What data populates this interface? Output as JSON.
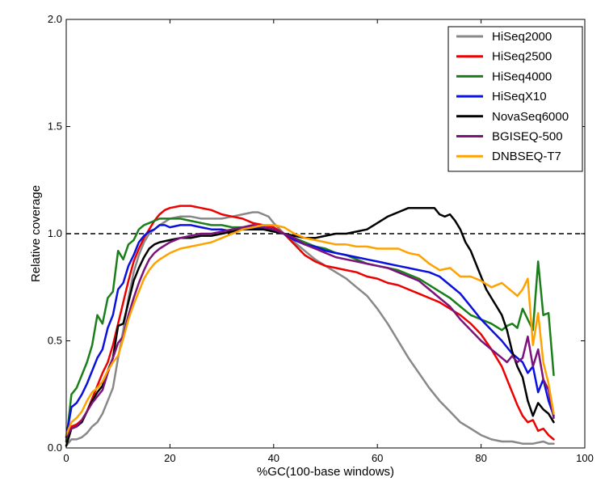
{
  "chart_data": {
    "type": "line",
    "title": "",
    "xlabel": "%GC(100-base windows)",
    "ylabel": "Relative coverage",
    "xlim": [
      0,
      100
    ],
    "ylim": [
      0,
      2.0
    ],
    "xticks": [
      "0",
      "20",
      "40",
      "60",
      "80",
      "100"
    ],
    "yticks": [
      "0.0",
      "0.5",
      "1.0",
      "1.5",
      "2.0"
    ],
    "reference_line": {
      "y": 1.0,
      "style": "dashed",
      "color": "#000000"
    },
    "legend_position": "top-right",
    "series": [
      {
        "name": "HiSeq2000",
        "color": "#888888",
        "x": [
          0,
          1,
          2,
          3,
          4,
          5,
          6,
          7,
          8,
          9,
          10,
          11,
          12,
          13,
          14,
          15,
          16,
          18,
          20,
          22,
          24,
          26,
          28,
          30,
          32,
          34,
          36,
          37,
          38,
          39,
          40,
          42,
          44,
          46,
          48,
          50,
          52,
          54,
          56,
          58,
          60,
          62,
          64,
          66,
          68,
          70,
          72,
          74,
          76,
          78,
          80,
          82,
          84,
          86,
          88,
          90,
          92,
          93,
          94
        ],
        "y": [
          0.01,
          0.04,
          0.04,
          0.05,
          0.07,
          0.1,
          0.12,
          0.16,
          0.22,
          0.28,
          0.42,
          0.55,
          0.7,
          0.82,
          0.9,
          0.96,
          1.0,
          1.04,
          1.07,
          1.08,
          1.08,
          1.07,
          1.07,
          1.07,
          1.08,
          1.09,
          1.1,
          1.1,
          1.09,
          1.08,
          1.05,
          1.0,
          0.96,
          0.92,
          0.88,
          0.85,
          0.82,
          0.79,
          0.75,
          0.71,
          0.65,
          0.58,
          0.5,
          0.42,
          0.35,
          0.28,
          0.22,
          0.17,
          0.12,
          0.09,
          0.06,
          0.04,
          0.03,
          0.03,
          0.02,
          0.02,
          0.03,
          0.02,
          0.02
        ]
      },
      {
        "name": "HiSeq2500",
        "color": "#ee0000",
        "x": [
          0,
          1,
          2,
          3,
          4,
          5,
          6,
          7,
          8,
          9,
          10,
          11,
          12,
          13,
          14,
          15,
          16,
          17,
          18,
          19,
          20,
          22,
          24,
          26,
          28,
          30,
          32,
          34,
          36,
          38,
          40,
          42,
          44,
          46,
          48,
          50,
          52,
          54,
          56,
          58,
          60,
          62,
          64,
          66,
          68,
          70,
          72,
          74,
          76,
          78,
          80,
          82,
          84,
          86,
          87,
          88,
          89,
          90,
          91,
          92,
          93,
          94
        ],
        "y": [
          0.03,
          0.1,
          0.11,
          0.13,
          0.17,
          0.23,
          0.29,
          0.35,
          0.4,
          0.48,
          0.58,
          0.68,
          0.78,
          0.87,
          0.93,
          0.98,
          1.02,
          1.06,
          1.09,
          1.11,
          1.12,
          1.13,
          1.13,
          1.12,
          1.11,
          1.09,
          1.08,
          1.07,
          1.05,
          1.04,
          1.03,
          1.0,
          0.95,
          0.9,
          0.87,
          0.85,
          0.84,
          0.83,
          0.82,
          0.8,
          0.79,
          0.77,
          0.76,
          0.74,
          0.72,
          0.7,
          0.68,
          0.65,
          0.62,
          0.58,
          0.53,
          0.46,
          0.38,
          0.26,
          0.2,
          0.15,
          0.12,
          0.13,
          0.08,
          0.09,
          0.06,
          0.04
        ]
      },
      {
        "name": "HiSeq4000",
        "color": "#1a7f1a",
        "x": [
          0,
          1,
          2,
          3,
          4,
          5,
          6,
          7,
          8,
          9,
          10,
          11,
          12,
          13,
          14,
          15,
          16,
          17,
          18,
          19,
          20,
          22,
          24,
          26,
          28,
          30,
          32,
          34,
          36,
          38,
          40,
          42,
          44,
          46,
          48,
          50,
          52,
          54,
          56,
          58,
          60,
          62,
          64,
          66,
          68,
          70,
          72,
          74,
          76,
          78,
          80,
          82,
          84,
          85,
          86,
          87,
          88,
          89,
          90,
          91,
          92,
          93,
          94
        ],
        "y": [
          0.03,
          0.25,
          0.28,
          0.34,
          0.4,
          0.48,
          0.62,
          0.58,
          0.7,
          0.73,
          0.92,
          0.88,
          0.95,
          0.97,
          1.02,
          1.04,
          1.05,
          1.06,
          1.07,
          1.07,
          1.07,
          1.07,
          1.06,
          1.05,
          1.04,
          1.04,
          1.03,
          1.03,
          1.03,
          1.02,
          1.01,
          1.0,
          0.98,
          0.96,
          0.94,
          0.93,
          0.91,
          0.9,
          0.88,
          0.86,
          0.85,
          0.84,
          0.83,
          0.81,
          0.79,
          0.76,
          0.73,
          0.7,
          0.66,
          0.62,
          0.6,
          0.58,
          0.55,
          0.57,
          0.58,
          0.56,
          0.65,
          0.6,
          0.55,
          0.87,
          0.62,
          0.63,
          0.34
        ]
      },
      {
        "name": "HiSeqX10",
        "color": "#0a10dd",
        "x": [
          0,
          1,
          2,
          3,
          4,
          5,
          6,
          7,
          8,
          9,
          10,
          11,
          12,
          13,
          14,
          15,
          16,
          17,
          18,
          19,
          20,
          22,
          24,
          26,
          28,
          30,
          32,
          34,
          36,
          38,
          40,
          42,
          44,
          46,
          48,
          50,
          52,
          54,
          56,
          58,
          60,
          62,
          64,
          66,
          68,
          70,
          72,
          74,
          76,
          78,
          80,
          82,
          84,
          86,
          88,
          89,
          90,
          91,
          92,
          93,
          94
        ],
        "y": [
          0.05,
          0.19,
          0.21,
          0.25,
          0.3,
          0.36,
          0.42,
          0.46,
          0.56,
          0.62,
          0.74,
          0.77,
          0.85,
          0.9,
          0.96,
          0.99,
          1.01,
          1.02,
          1.04,
          1.04,
          1.03,
          1.04,
          1.04,
          1.03,
          1.02,
          1.02,
          1.01,
          1.02,
          1.03,
          1.03,
          1.02,
          1.0,
          0.97,
          0.95,
          0.94,
          0.92,
          0.91,
          0.9,
          0.89,
          0.88,
          0.87,
          0.86,
          0.85,
          0.84,
          0.83,
          0.82,
          0.8,
          0.76,
          0.72,
          0.66,
          0.6,
          0.55,
          0.5,
          0.44,
          0.4,
          0.35,
          0.38,
          0.26,
          0.32,
          0.22,
          0.15
        ]
      },
      {
        "name": "NovaSeq6000",
        "color": "#000000",
        "x": [
          0,
          1,
          2,
          3,
          4,
          5,
          6,
          7,
          8,
          9,
          10,
          11,
          12,
          13,
          14,
          15,
          16,
          17,
          18,
          20,
          22,
          24,
          26,
          28,
          30,
          32,
          34,
          36,
          38,
          40,
          42,
          44,
          46,
          48,
          50,
          52,
          54,
          56,
          58,
          60,
          62,
          64,
          66,
          68,
          70,
          71,
          72,
          73,
          74,
          75,
          76,
          77,
          78,
          79,
          80,
          81,
          82,
          83,
          84,
          85,
          86,
          87,
          88,
          89,
          90,
          91,
          92,
          93,
          94
        ],
        "y": [
          0.01,
          0.09,
          0.1,
          0.12,
          0.17,
          0.22,
          0.26,
          0.29,
          0.36,
          0.42,
          0.57,
          0.58,
          0.68,
          0.78,
          0.84,
          0.89,
          0.93,
          0.95,
          0.96,
          0.97,
          0.98,
          0.98,
          0.99,
          0.99,
          1.0,
          1.01,
          1.02,
          1.02,
          1.02,
          1.01,
          1.0,
          0.99,
          0.98,
          0.98,
          0.99,
          1.0,
          1.0,
          1.01,
          1.02,
          1.05,
          1.08,
          1.1,
          1.12,
          1.12,
          1.12,
          1.12,
          1.09,
          1.08,
          1.09,
          1.06,
          1.02,
          0.96,
          0.92,
          0.86,
          0.8,
          0.74,
          0.7,
          0.66,
          0.62,
          0.55,
          0.45,
          0.38,
          0.33,
          0.22,
          0.15,
          0.21,
          0.18,
          0.16,
          0.12
        ]
      },
      {
        "name": "BGISEQ-500",
        "color": "#7b137b",
        "x": [
          0,
          1,
          2,
          3,
          4,
          5,
          6,
          7,
          8,
          9,
          10,
          11,
          12,
          13,
          14,
          15,
          16,
          17,
          18,
          20,
          22,
          24,
          26,
          28,
          30,
          32,
          34,
          36,
          38,
          40,
          42,
          44,
          46,
          48,
          50,
          52,
          54,
          56,
          58,
          60,
          62,
          64,
          66,
          68,
          70,
          72,
          74,
          76,
          78,
          80,
          82,
          84,
          85,
          86,
          87,
          88,
          89,
          90,
          91,
          92,
          93,
          94
        ],
        "y": [
          0.05,
          0.09,
          0.1,
          0.13,
          0.17,
          0.21,
          0.24,
          0.27,
          0.35,
          0.42,
          0.49,
          0.52,
          0.62,
          0.7,
          0.77,
          0.83,
          0.88,
          0.91,
          0.93,
          0.96,
          0.98,
          0.99,
          1.0,
          1.0,
          1.01,
          1.02,
          1.03,
          1.04,
          1.03,
          1.02,
          1.0,
          0.98,
          0.95,
          0.93,
          0.91,
          0.89,
          0.88,
          0.87,
          0.86,
          0.85,
          0.84,
          0.82,
          0.8,
          0.78,
          0.74,
          0.7,
          0.66,
          0.6,
          0.55,
          0.5,
          0.46,
          0.42,
          0.4,
          0.43,
          0.4,
          0.42,
          0.52,
          0.38,
          0.46,
          0.32,
          0.27,
          0.14
        ]
      },
      {
        "name": "DNBSEQ-T7",
        "color": "#ffa200",
        "x": [
          0,
          1,
          2,
          3,
          4,
          5,
          6,
          7,
          8,
          9,
          10,
          11,
          12,
          13,
          14,
          15,
          16,
          17,
          18,
          20,
          22,
          24,
          26,
          28,
          30,
          32,
          34,
          36,
          38,
          40,
          42,
          44,
          46,
          48,
          50,
          52,
          54,
          56,
          58,
          60,
          62,
          64,
          66,
          68,
          70,
          72,
          74,
          76,
          78,
          80,
          82,
          84,
          86,
          87,
          88,
          89,
          90,
          91,
          92,
          93,
          94
        ],
        "y": [
          0.06,
          0.12,
          0.14,
          0.17,
          0.22,
          0.26,
          0.28,
          0.31,
          0.36,
          0.4,
          0.43,
          0.51,
          0.6,
          0.67,
          0.73,
          0.79,
          0.83,
          0.86,
          0.88,
          0.91,
          0.93,
          0.94,
          0.95,
          0.96,
          0.98,
          1.0,
          1.02,
          1.03,
          1.04,
          1.04,
          1.03,
          1.0,
          0.98,
          0.97,
          0.96,
          0.95,
          0.95,
          0.94,
          0.94,
          0.93,
          0.93,
          0.93,
          0.91,
          0.9,
          0.86,
          0.83,
          0.84,
          0.8,
          0.8,
          0.78,
          0.75,
          0.77,
          0.73,
          0.71,
          0.74,
          0.79,
          0.48,
          0.63,
          0.4,
          0.3,
          0.16
        ]
      }
    ]
  }
}
